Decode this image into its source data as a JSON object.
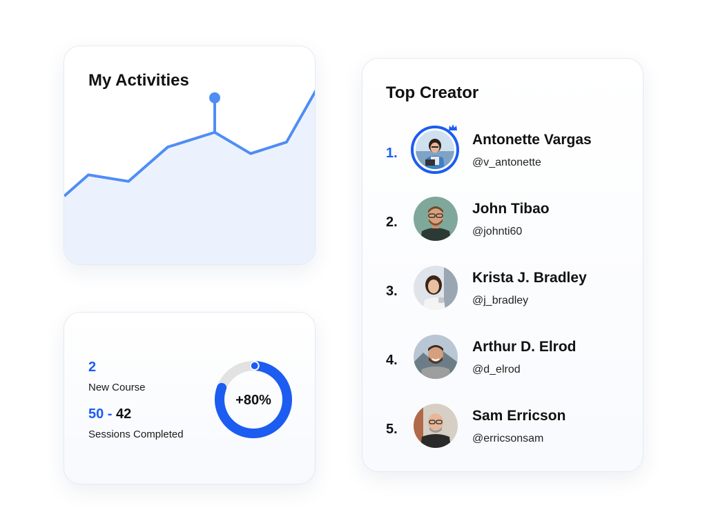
{
  "activities": {
    "title": "My Activities",
    "accent": "#4f8df5",
    "fill": "#ecf2fd",
    "points": [
      32,
      45,
      41,
      62,
      71,
      58,
      65,
      97
    ],
    "highlight_index": 4
  },
  "stats": {
    "new_course_value": "2",
    "new_course_label": "New Course",
    "sessions_total": "50",
    "sessions_separator": " - ",
    "sessions_done": "42",
    "sessions_label": "Sessions Completed",
    "progress_text": "+80%",
    "progress_fraction": 0.8,
    "accent": "#1c5cf0",
    "track": "#e2e2e2"
  },
  "creators": {
    "title": "Top Creator",
    "items": [
      {
        "rank": "1.",
        "name": "Antonette Vargas",
        "handle": "@v_antonette"
      },
      {
        "rank": "2.",
        "name": "John Tibao",
        "handle": "@johnti60"
      },
      {
        "rank": "3.",
        "name": "Krista J. Bradley",
        "handle": "@j_bradley"
      },
      {
        "rank": "4.",
        "name": "Arthur D. Elrod",
        "handle": "@d_elrod"
      },
      {
        "rank": "5.",
        "name": "Sam Erricson",
        "handle": "@erricsonsam"
      }
    ],
    "top_badge_icon": "crown-icon"
  }
}
